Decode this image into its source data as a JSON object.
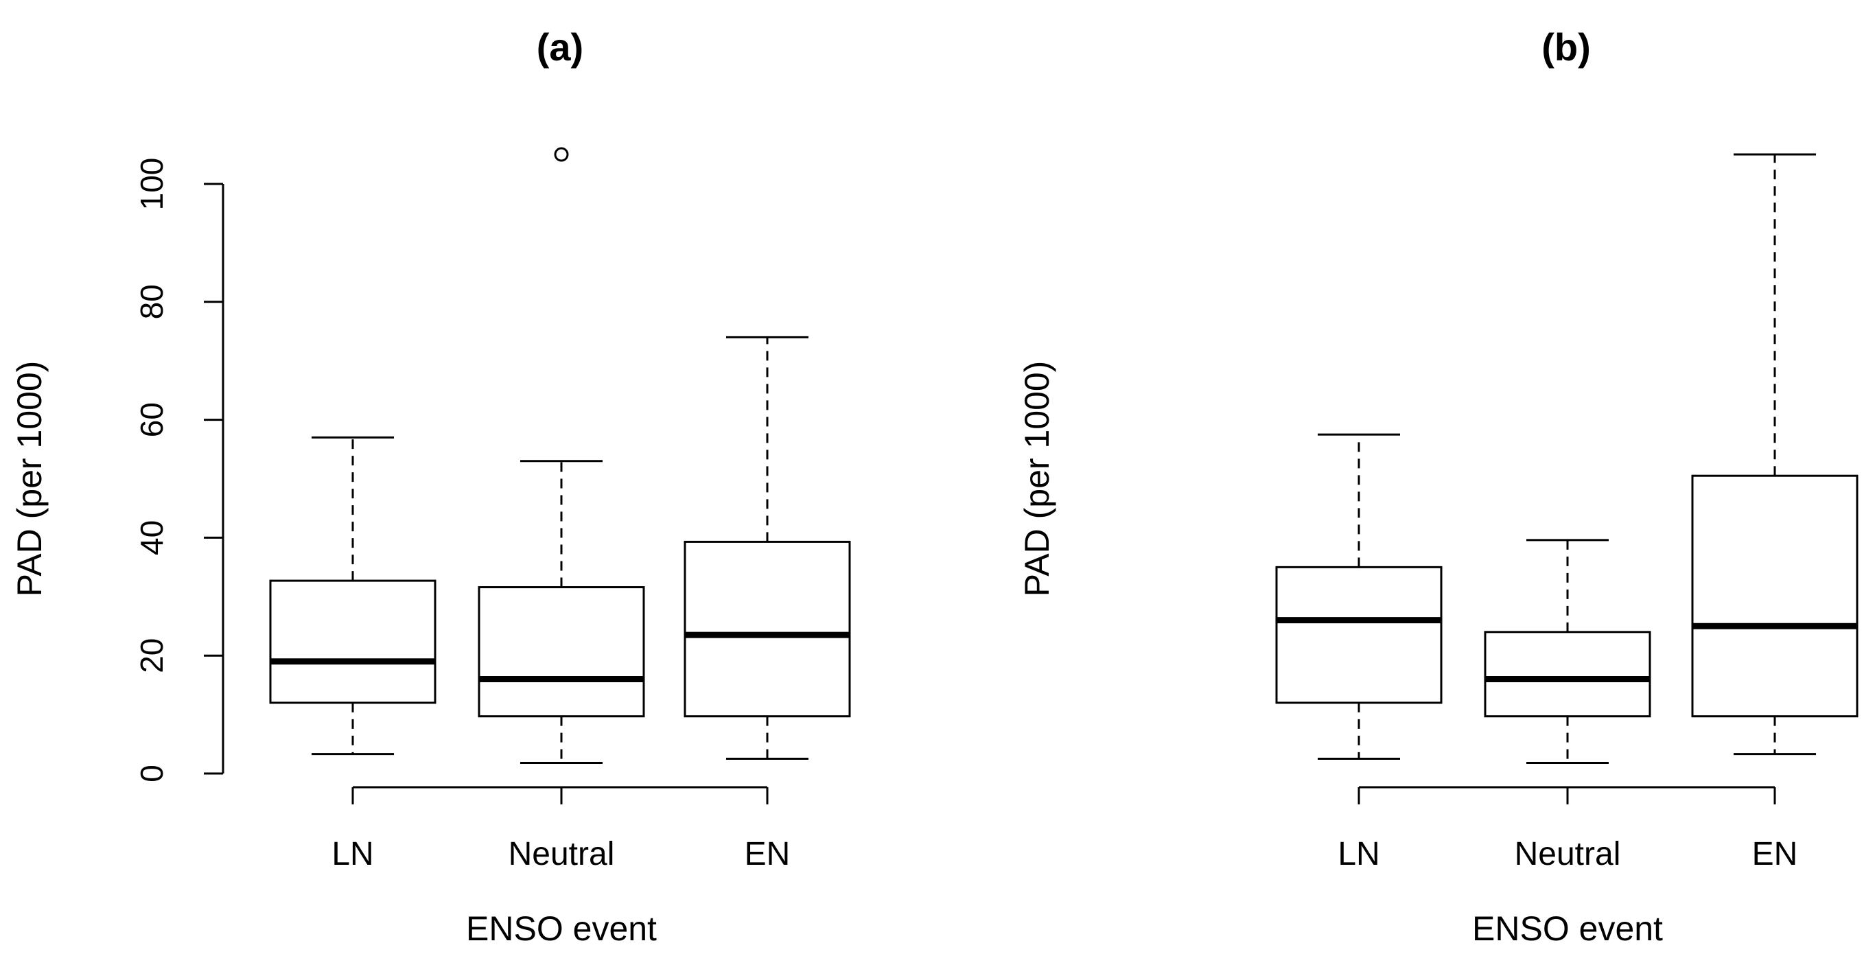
{
  "chart_data": [
    {
      "type": "boxplot",
      "title": "(a)",
      "xlabel": "ENSO event",
      "ylabel": "PAD (per 1000)",
      "ylim": [
        0,
        105
      ],
      "yticks": [
        "0",
        "20",
        "40",
        "60",
        "80",
        "100"
      ],
      "grid": false,
      "categories": [
        "LN",
        "Neutral",
        "EN"
      ],
      "boxes": [
        {
          "whisker_low": 3.3,
          "q1": 12,
          "median": 19,
          "q3": 32.7,
          "whisker_high": 57,
          "outliers": []
        },
        {
          "whisker_low": 1.8,
          "q1": 9.7,
          "median": 16,
          "q3": 31.6,
          "whisker_high": 53,
          "outliers": [
            105
          ]
        },
        {
          "whisker_low": 2.5,
          "q1": 9.7,
          "median": 23.5,
          "q3": 39.3,
          "whisker_high": 74,
          "outliers": []
        }
      ]
    },
    {
      "type": "boxplot",
      "title": "(b)",
      "xlabel": "ENSO event",
      "ylabel": "PAD (per 1000)",
      "ylim": [
        0,
        105
      ],
      "grid": false,
      "categories": [
        "LN",
        "Neutral",
        "EN"
      ],
      "boxes": [
        {
          "whisker_low": 2.5,
          "q1": 12,
          "median": 26,
          "q3": 35,
          "whisker_high": 57.5,
          "outliers": []
        },
        {
          "whisker_low": 1.8,
          "q1": 9.7,
          "median": 16,
          "q3": 24,
          "whisker_high": 39.6,
          "outliers": []
        },
        {
          "whisker_low": 3.3,
          "q1": 9.7,
          "median": 25,
          "q3": 50.5,
          "whisker_high": 105,
          "outliers": []
        }
      ]
    }
  ]
}
